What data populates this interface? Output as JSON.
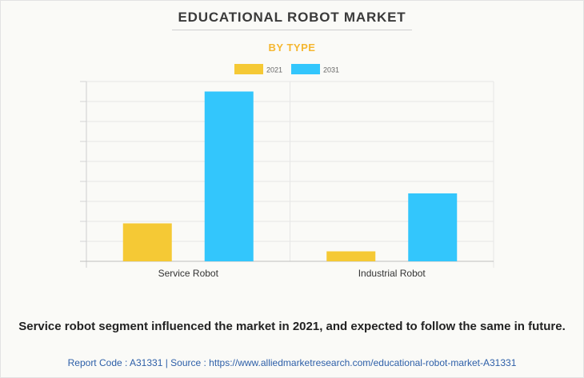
{
  "title": "EDUCATIONAL ROBOT MARKET",
  "subtitle": "BY TYPE",
  "footnote": "Service robot segment influenced the market in 2021, and expected to follow the same in future.",
  "source_line": "Report Code : A31331  |  Source : https://www.alliedmarketresearch.com/educational-robot-market-A31331",
  "colors": {
    "2021": "#f5c935",
    "2031": "#33c6fc"
  },
  "chart_data": {
    "type": "bar",
    "categories": [
      "Service Robot",
      "Industrial Robot"
    ],
    "series": [
      {
        "name": "2021",
        "values": [
          0.19,
          0.05
        ]
      },
      {
        "name": "2031",
        "values": [
          0.85,
          0.34
        ]
      }
    ],
    "xlabel": "",
    "ylabel": "",
    "ylim": [
      0,
      0.9
    ],
    "grid": true,
    "legend": "top-center"
  }
}
